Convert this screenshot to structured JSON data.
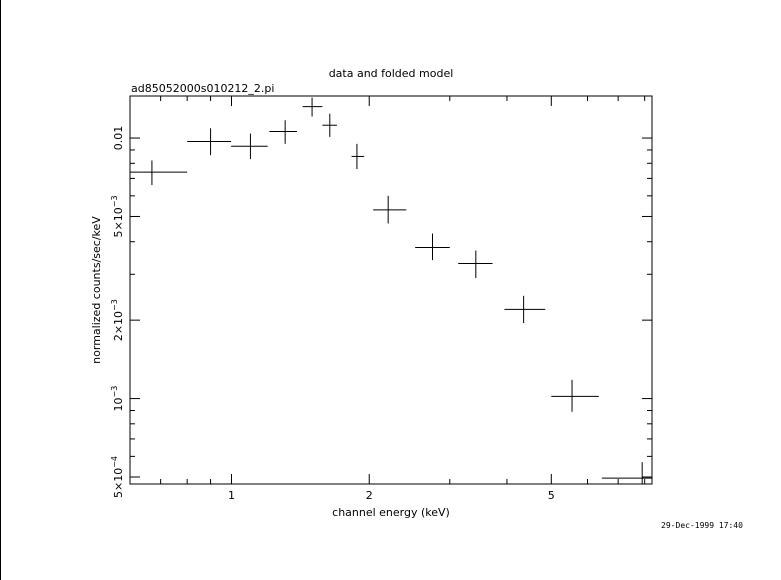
{
  "header": {
    "title": "data and folded model",
    "filename": "ad85052000s010212_2.pi",
    "timestamp": "29-Dec-1999 17:40"
  },
  "chart_data": {
    "type": "scatter",
    "xlabel": "channel energy (keV)",
    "ylabel": "normalized counts/sec/keV",
    "xscale": "log",
    "yscale": "log",
    "xlim": [
      0.6,
      8.3
    ],
    "ylim": [
      0.00047,
      0.0145
    ],
    "x_ticks": [
      {
        "value": 1,
        "label": "1"
      },
      {
        "value": 2,
        "label": "2"
      },
      {
        "value": 5,
        "label": "5"
      }
    ],
    "y_ticks": [
      {
        "value": 0.0005,
        "base": "5×10",
        "exp": "−4"
      },
      {
        "value": 0.001,
        "base": "10",
        "exp": "−3"
      },
      {
        "value": 0.002,
        "base": "2×10",
        "exp": "−3"
      },
      {
        "value": 0.005,
        "base": "5×10",
        "exp": "−3"
      },
      {
        "value": 0.01,
        "base": "0.01",
        "exp": ""
      }
    ],
    "points": [
      {
        "x": 0.67,
        "y": 0.0074,
        "xlo": 0.6,
        "xhi": 0.8,
        "ylo": 0.0066,
        "yhi": 0.0082
      },
      {
        "x": 0.9,
        "y": 0.0097,
        "xlo": 0.8,
        "xhi": 0.998,
        "ylo": 0.0086,
        "yhi": 0.0109
      },
      {
        "x": 1.1,
        "y": 0.0093,
        "xlo": 0.998,
        "xhi": 1.2,
        "ylo": 0.0083,
        "yhi": 0.0104
      },
      {
        "x": 1.31,
        "y": 0.0106,
        "xlo": 1.21,
        "xhi": 1.39,
        "ylo": 0.0095,
        "yhi": 0.0117
      },
      {
        "x": 1.5,
        "y": 0.0132,
        "xlo": 1.43,
        "xhi": 1.58,
        "ylo": 0.0121,
        "yhi": 0.0143
      },
      {
        "x": 1.64,
        "y": 0.0112,
        "xlo": 1.58,
        "xhi": 1.7,
        "ylo": 0.0101,
        "yhi": 0.0124
      },
      {
        "x": 1.88,
        "y": 0.0085,
        "xlo": 1.83,
        "xhi": 1.95,
        "ylo": 0.0076,
        "yhi": 0.0095
      },
      {
        "x": 2.2,
        "y": 0.0053,
        "xlo": 2.04,
        "xhi": 2.41,
        "ylo": 0.0047,
        "yhi": 0.006
      },
      {
        "x": 2.75,
        "y": 0.0038,
        "xlo": 2.52,
        "xhi": 3.0,
        "ylo": 0.0034,
        "yhi": 0.0043
      },
      {
        "x": 3.42,
        "y": 0.0033,
        "xlo": 3.13,
        "xhi": 3.72,
        "ylo": 0.0029,
        "yhi": 0.0037
      },
      {
        "x": 4.35,
        "y": 0.0022,
        "xlo": 3.95,
        "xhi": 4.85,
        "ylo": 0.00195,
        "yhi": 0.00248
      },
      {
        "x": 5.55,
        "y": 0.00102,
        "xlo": 5.0,
        "xhi": 6.35,
        "ylo": 0.00089,
        "yhi": 0.00118
      },
      {
        "x": 7.9,
        "y": 0.000495,
        "xlo": 6.45,
        "xhi": 8.3,
        "ylo": 0.00044,
        "yhi": 0.00057
      }
    ]
  }
}
